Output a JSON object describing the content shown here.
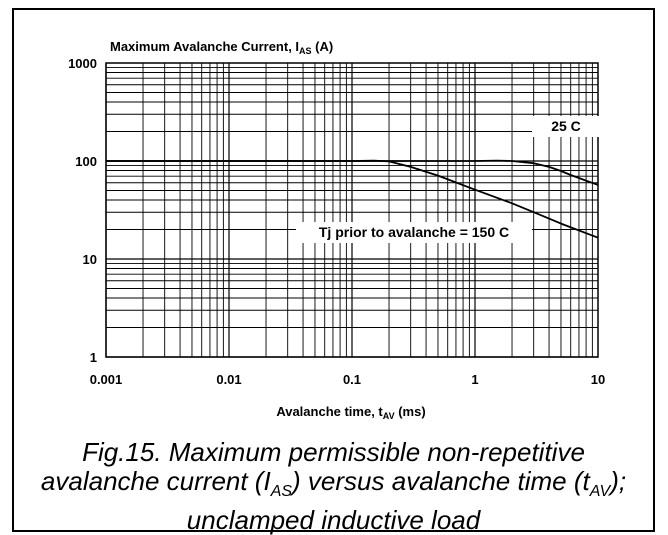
{
  "chart_data": {
    "type": "line",
    "title_main": "Maximum Avalanche Current, I",
    "title_sub": "AS",
    "title_unit": " (A)",
    "xlabel_main": "Avalanche time, t",
    "xlabel_sub": "AV",
    "xlabel_unit": " (ms)",
    "x_scale": "log",
    "y_scale": "log",
    "xlim": [
      0.001,
      10
    ],
    "ylim": [
      1,
      1000
    ],
    "x_ticks": [
      "0.001",
      "0.01",
      "0.1",
      "1",
      "10"
    ],
    "y_ticks": [
      "1",
      "10",
      "100",
      "1000"
    ],
    "grid": true,
    "series": [
      {
        "name": "25 C",
        "x": [
          0.001,
          0.01,
          0.1,
          1,
          1.5,
          2,
          3,
          4,
          5,
          6,
          7,
          8,
          10
        ],
        "y": [
          100,
          100,
          100,
          100,
          101,
          100,
          95,
          87,
          79,
          72,
          67,
          63,
          57
        ]
      },
      {
        "name": "Tj prior to avalanche = 150 C",
        "x": [
          0.001,
          0.01,
          0.1,
          0.15,
          0.2,
          0.3,
          0.5,
          1,
          2,
          3,
          5,
          10
        ],
        "y": [
          100,
          100,
          100,
          101,
          99,
          87,
          71,
          51,
          37,
          30,
          23,
          16.5
        ]
      }
    ],
    "annotations": [
      {
        "text": "25 C",
        "series": 0
      },
      {
        "text": "Tj prior to avalanche = 150 C",
        "series": 1
      }
    ]
  },
  "caption": {
    "line1": "Fig.15.  Maximum permissible non-repetitive",
    "line2_a": "avalanche current (I",
    "line2_sub1": "AS",
    "line2_b": ") versus avalanche time (t",
    "line2_sub2": "AV",
    "line2_c": ");",
    "line3": "unclamped inductive load"
  }
}
